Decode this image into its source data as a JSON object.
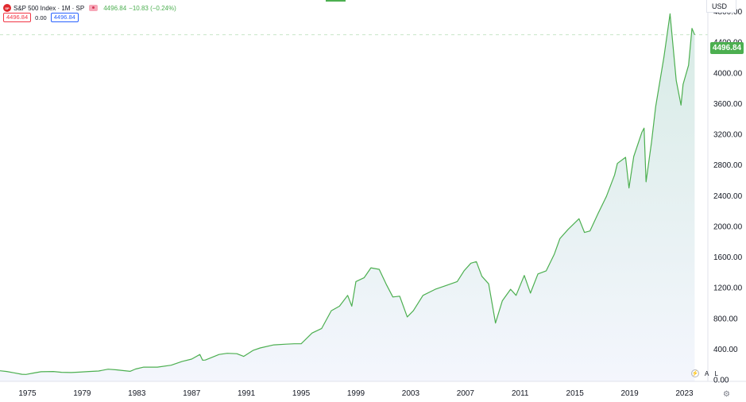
{
  "header": {
    "symbol_icon": "SP",
    "title": "S&P 500 Index · 1M · SP",
    "price": "4496.84",
    "change": "−10.83 (−0.24%)",
    "open_box": "4496.84",
    "spread": "0.00",
    "close_box": "4496.84"
  },
  "currency": "USD",
  "last_price_label": "4496.84",
  "controls": {
    "auto_label": "A",
    "log_label": "L",
    "lightning_icon": "lightning-icon",
    "settings_icon": "gear-icon"
  },
  "colors": {
    "line": "#4caf50",
    "area_top": "#d7ebe5",
    "area_bottom": "#f4f6fd",
    "last_price_bg": "#4caf50"
  },
  "chart_data": {
    "type": "area",
    "title": "",
    "xlabel": "",
    "ylabel": "",
    "xlim": [
      1973.0,
      2023.9
    ],
    "ylim": [
      -20,
      4950
    ],
    "x_ticks": [
      "1975",
      "1979",
      "1983",
      "1987",
      "1991",
      "1995",
      "1999",
      "2003",
      "2007",
      "2011",
      "2015",
      "2019",
      "2023"
    ],
    "y_ticks": [
      "0.00",
      "400.00",
      "800.00",
      "1200.00",
      "1600.00",
      "2000.00",
      "2400.00",
      "2800.00",
      "3200.00",
      "3600.00",
      "4000.00",
      "4400.00",
      "4800.00"
    ],
    "grid": false,
    "series": [
      {
        "x": [
          1973.0,
          1973.5,
          1974.0,
          1974.6,
          1974.9,
          1975.5,
          1976.0,
          1976.9,
          1977.5,
          1978.2,
          1978.8,
          1979.5,
          1980.2,
          1980.9,
          1981.5,
          1982.5,
          1982.9,
          1983.5,
          1984.5,
          1985.5,
          1986.3,
          1987.0,
          1987.6,
          1987.8,
          1988.0,
          1989.0,
          1989.6,
          1990.3,
          1990.8,
          1991.5,
          1992.0,
          1993.0,
          1993.9,
          1994.5,
          1995.0,
          1995.8,
          1996.5,
          1997.2,
          1997.8,
          1998.4,
          1998.7,
          1999.0,
          1999.6,
          2000.1,
          2000.7,
          2001.2,
          2001.7,
          2002.2,
          2002.75,
          2003.2,
          2003.9,
          2004.8,
          2005.6,
          2006.4,
          2006.9,
          2007.4,
          2007.8,
          2008.2,
          2008.7,
          2009.2,
          2009.7,
          2010.3,
          2010.7,
          2011.3,
          2011.75,
          2012.3,
          2012.9,
          2013.5,
          2013.9,
          2014.5,
          2015.3,
          2015.7,
          2016.1,
          2016.7,
          2017.3,
          2017.9,
          2018.1,
          2018.7,
          2018.95,
          2019.3,
          2019.9,
          2020.05,
          2020.2,
          2020.6,
          2020.9,
          2021.5,
          2021.95,
          2022.4,
          2022.75,
          2022.9,
          2023.3,
          2023.55,
          2023.75
        ],
        "y": [
          118,
          108,
          92,
          72,
          70,
          90,
          105,
          108,
          98,
          95,
          100,
          108,
          115,
          138,
          130,
          110,
          140,
          165,
          165,
          190,
          240,
          270,
          330,
          255,
          258,
          330,
          345,
          340,
          305,
          385,
          415,
          455,
          465,
          470,
          470,
          610,
          670,
          900,
          960,
          1100,
          960,
          1280,
          1330,
          1460,
          1440,
          1250,
          1080,
          1090,
          820,
          900,
          1100,
          1180,
          1230,
          1280,
          1420,
          1520,
          1540,
          1350,
          1250,
          740,
          1030,
          1180,
          1100,
          1360,
          1130,
          1380,
          1420,
          1640,
          1840,
          1960,
          2100,
          1920,
          1940,
          2170,
          2390,
          2670,
          2820,
          2900,
          2500,
          2910,
          3230,
          3280,
          2580,
          3100,
          3560,
          4200,
          4770,
          3900,
          3580,
          3850,
          4100,
          4580,
          4496.84
        ]
      }
    ]
  }
}
